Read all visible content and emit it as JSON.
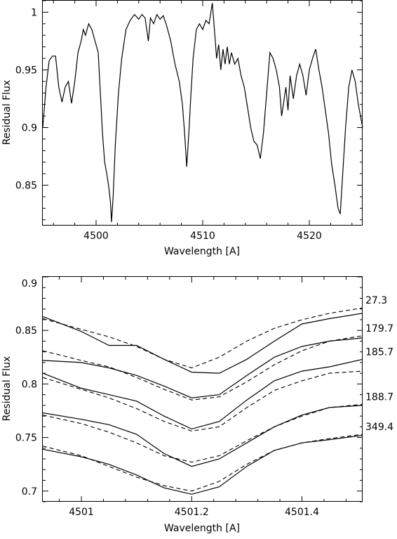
{
  "chart_data": [
    {
      "type": "line",
      "xlabel": "Wavelength [A]",
      "ylabel": "Residual Flux",
      "xlim": [
        4495,
        4525
      ],
      "ylim": [
        0.815,
        1.01
      ],
      "xticks": [
        4500,
        4510,
        4520
      ],
      "yticks": [
        0.85,
        0.9,
        0.95,
        1
      ],
      "ytick_labels": [
        "0.85",
        "0.9",
        "0.95",
        "1"
      ],
      "series": [
        {
          "values": [
            [
              4495.0,
              0.9
            ],
            [
              4495.3,
              0.935
            ],
            [
              4495.6,
              0.958
            ],
            [
              4495.9,
              0.962
            ],
            [
              4496.2,
              0.962
            ],
            [
              4496.5,
              0.935
            ],
            [
              4496.8,
              0.922
            ],
            [
              4497.1,
              0.935
            ],
            [
              4497.4,
              0.94
            ],
            [
              4497.7,
              0.921
            ],
            [
              4498.0,
              0.94
            ],
            [
              4498.3,
              0.965
            ],
            [
              4498.6,
              0.975
            ],
            [
              4498.8,
              0.985
            ],
            [
              4499.0,
              0.98
            ],
            [
              4499.3,
              0.99
            ],
            [
              4499.6,
              0.985
            ],
            [
              4499.9,
              0.975
            ],
            [
              4500.2,
              0.965
            ],
            [
              4500.4,
              0.93
            ],
            [
              4500.6,
              0.895
            ],
            [
              4500.8,
              0.87
            ],
            [
              4501.0,
              0.86
            ],
            [
              4501.2,
              0.848
            ],
            [
              4501.35,
              0.835
            ],
            [
              4501.45,
              0.818
            ],
            [
              4501.6,
              0.84
            ],
            [
              4501.8,
              0.885
            ],
            [
              4502.1,
              0.93
            ],
            [
              4502.4,
              0.96
            ],
            [
              4502.8,
              0.985
            ],
            [
              4503.2,
              0.993
            ],
            [
              4503.6,
              0.998
            ],
            [
              4504.0,
              0.994
            ],
            [
              4504.3,
              0.998
            ],
            [
              4504.6,
              0.995
            ],
            [
              4504.9,
              0.975
            ],
            [
              4505.1,
              0.995
            ],
            [
              4505.4,
              0.99
            ],
            [
              4505.7,
              0.998
            ],
            [
              4506.0,
              0.994
            ],
            [
              4506.3,
              0.997
            ],
            [
              4506.6,
              0.989
            ],
            [
              4507.0,
              0.975
            ],
            [
              4507.4,
              0.955
            ],
            [
              4507.8,
              0.94
            ],
            [
              4508.1,
              0.92
            ],
            [
              4508.3,
              0.895
            ],
            [
              4508.5,
              0.866
            ],
            [
              4508.7,
              0.895
            ],
            [
              4508.9,
              0.93
            ],
            [
              4509.1,
              0.96
            ],
            [
              4509.4,
              0.985
            ],
            [
              4509.7,
              0.99
            ],
            [
              4510.0,
              0.985
            ],
            [
              4510.3,
              0.993
            ],
            [
              4510.6,
              0.99
            ],
            [
              4510.9,
              1.008
            ],
            [
              4511.1,
              0.985
            ],
            [
              4511.3,
              0.96
            ],
            [
              4511.5,
              0.972
            ],
            [
              4511.7,
              0.95
            ],
            [
              4511.9,
              0.968
            ],
            [
              4512.1,
              0.955
            ],
            [
              4512.3,
              0.97
            ],
            [
              4512.5,
              0.955
            ],
            [
              4512.7,
              0.965
            ],
            [
              4513.0,
              0.955
            ],
            [
              4513.3,
              0.96
            ],
            [
              4513.6,
              0.945
            ],
            [
              4513.9,
              0.935
            ],
            [
              4514.2,
              0.918
            ],
            [
              4514.5,
              0.9
            ],
            [
              4514.8,
              0.888
            ],
            [
              4515.1,
              0.885
            ],
            [
              4515.4,
              0.873
            ],
            [
              4515.7,
              0.895
            ],
            [
              4516.0,
              0.93
            ],
            [
              4516.3,
              0.965
            ],
            [
              4516.6,
              0.96
            ],
            [
              4516.9,
              0.95
            ],
            [
              4517.2,
              0.935
            ],
            [
              4517.4,
              0.91
            ],
            [
              4517.6,
              0.922
            ],
            [
              4517.8,
              0.935
            ],
            [
              4518.0,
              0.915
            ],
            [
              4518.2,
              0.945
            ],
            [
              4518.5,
              0.925
            ],
            [
              4518.8,
              0.945
            ],
            [
              4519.1,
              0.955
            ],
            [
              4519.4,
              0.945
            ],
            [
              4519.7,
              0.928
            ],
            [
              4520.0,
              0.95
            ],
            [
              4520.3,
              0.96
            ],
            [
              4520.6,
              0.968
            ],
            [
              4520.9,
              0.95
            ],
            [
              4521.2,
              0.935
            ],
            [
              4521.5,
              0.915
            ],
            [
              4521.8,
              0.895
            ],
            [
              4522.1,
              0.868
            ],
            [
              4522.4,
              0.85
            ],
            [
              4522.7,
              0.83
            ],
            [
              4522.9,
              0.825
            ],
            [
              4523.1,
              0.855
            ],
            [
              4523.4,
              0.9
            ],
            [
              4523.7,
              0.935
            ],
            [
              4524.0,
              0.95
            ],
            [
              4524.3,
              0.94
            ],
            [
              4524.6,
              0.92
            ],
            [
              4525.0,
              0.9
            ]
          ]
        }
      ]
    },
    {
      "type": "line",
      "xlabel": "Wavelength [A]",
      "ylabel": "Residual Flux",
      "xlim": [
        4500.93,
        4501.51
      ],
      "ylim": [
        0.69,
        0.9
      ],
      "xticks": [
        4501.0,
        4501.2,
        4501.4
      ],
      "xtick_labels": [
        "4501",
        "4501.2",
        "4501.4"
      ],
      "yticks": [
        0.7,
        0.75,
        0.8,
        0.85,
        0.9
      ],
      "ytick_labels": [
        "0.7",
        "0.75",
        "0.8",
        "0.85",
        "0.9"
      ],
      "x": [
        4500.93,
        4501.0,
        4501.05,
        4501.1,
        4501.15,
        4501.2,
        4501.25,
        4501.3,
        4501.35,
        4501.4,
        4501.45,
        4501.51
      ],
      "series": [
        {
          "name": "27.3",
          "solid": [
            0.863,
            0.849,
            0.836,
            0.836,
            0.823,
            0.811,
            0.81,
            0.823,
            0.84,
            0.856,
            0.861,
            0.866
          ],
          "dashed": [
            0.861,
            0.851,
            0.844,
            0.835,
            0.823,
            0.815,
            0.825,
            0.84,
            0.852,
            0.86,
            0.866,
            0.871
          ]
        },
        {
          "name": "179.7",
          "solid": [
            0.822,
            0.82,
            0.815,
            0.808,
            0.798,
            0.787,
            0.79,
            0.808,
            0.825,
            0.835,
            0.84,
            0.843
          ],
          "dashed": [
            0.831,
            0.822,
            0.816,
            0.806,
            0.795,
            0.785,
            0.788,
            0.802,
            0.818,
            0.831,
            0.84,
            0.845
          ]
        },
        {
          "name": "185.7",
          "solid": [
            0.81,
            0.796,
            0.79,
            0.784,
            0.77,
            0.758,
            0.765,
            0.785,
            0.803,
            0.812,
            0.816,
            0.823
          ],
          "dashed": [
            0.806,
            0.795,
            0.787,
            0.777,
            0.765,
            0.756,
            0.76,
            0.778,
            0.794,
            0.803,
            0.81,
            0.812
          ]
        },
        {
          "name": "188.7",
          "solid": [
            0.773,
            0.767,
            0.762,
            0.753,
            0.735,
            0.723,
            0.73,
            0.745,
            0.76,
            0.771,
            0.778,
            0.78
          ],
          "dashed": [
            0.771,
            0.763,
            0.755,
            0.745,
            0.733,
            0.727,
            0.733,
            0.747,
            0.76,
            0.77,
            0.778,
            0.781
          ]
        },
        {
          "name": "349.4",
          "solid": [
            0.739,
            0.732,
            0.725,
            0.715,
            0.703,
            0.697,
            0.704,
            0.723,
            0.738,
            0.745,
            0.748,
            0.752
          ],
          "dashed": [
            0.742,
            0.733,
            0.723,
            0.713,
            0.705,
            0.7,
            0.709,
            0.725,
            0.738,
            0.745,
            0.749,
            0.753
          ]
        }
      ]
    }
  ]
}
